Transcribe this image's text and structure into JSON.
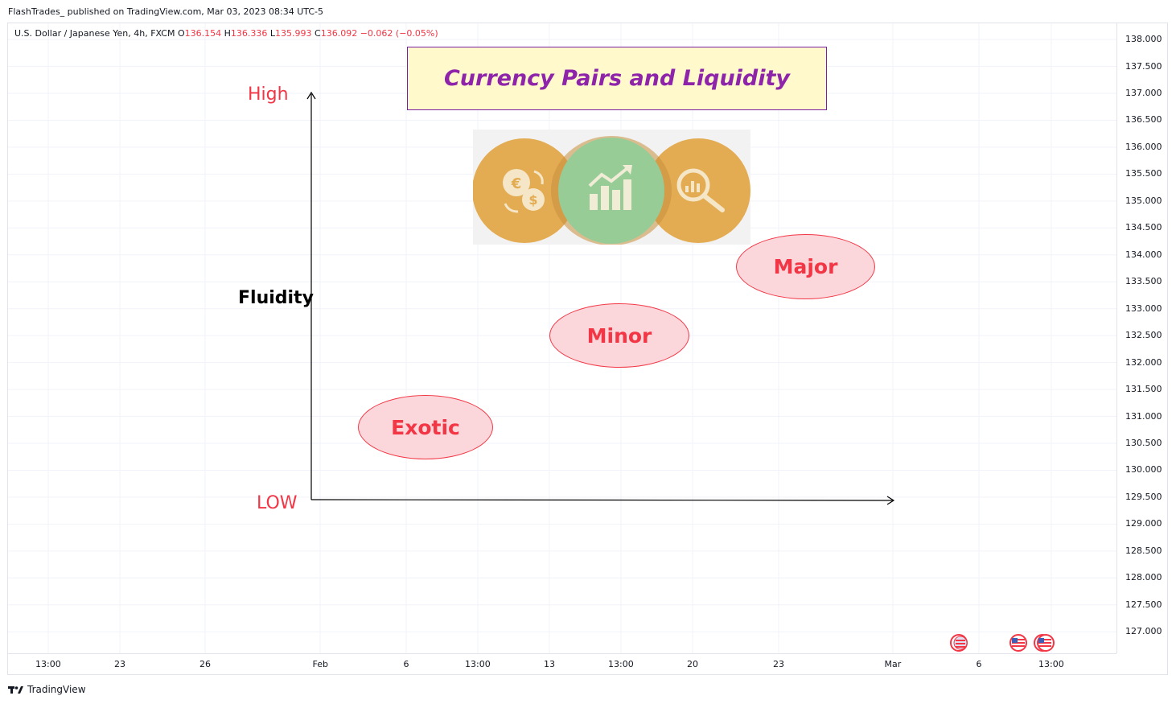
{
  "header": {
    "published": "FlashTrades_ published on TradingView.com, Mar 03, 2023 08:34 UTC-5"
  },
  "symbol": {
    "name": "U.S. Dollar / Japanese Yen, 4h, FXCM",
    "o_label": "O",
    "o_value": "136.154",
    "h_label": "H",
    "h_value": "136.336",
    "l_label": "L",
    "l_value": "135.993",
    "c_label": "C",
    "c_value": "136.092",
    "change": "−0.062 (−0.05%)"
  },
  "colors": {
    "accent_red": "#f23645",
    "title_purple": "#8e24aa",
    "title_bg": "#fff9cc",
    "ellipse_fill": "#fbd6da",
    "circle_orange": "#e3ab52",
    "circle_green": "#98cc96"
  },
  "annotations": {
    "title": "Currency Pairs and Liquidity",
    "high": "High",
    "low": "LOW",
    "y_label": "Fluidity",
    "exotic": "Exotic",
    "minor": "Minor",
    "major": "Major"
  },
  "icons": [
    "currency-exchange-icon",
    "growth-bar-chart-icon",
    "magnifier-analytics-icon"
  ],
  "chart_data": {
    "type": "line",
    "title": "",
    "y_ticks": [
      "138.000",
      "137.500",
      "137.000",
      "136.500",
      "136.000",
      "135.500",
      "135.000",
      "134.500",
      "134.000",
      "133.500",
      "133.000",
      "132.500",
      "132.000",
      "131.500",
      "131.000",
      "130.500",
      "130.000",
      "129.500",
      "129.000",
      "128.500",
      "128.000",
      "127.500",
      "127.000"
    ],
    "x_ticks": [
      "13:00",
      "23",
      "26",
      "Feb",
      "6",
      "13:00",
      "13",
      "13:00",
      "20",
      "23",
      "Mar",
      "6",
      "13:00"
    ],
    "ylim": [
      126.6,
      138.3
    ],
    "grid": true,
    "series": []
  },
  "footer": {
    "brand": "TradingView"
  }
}
